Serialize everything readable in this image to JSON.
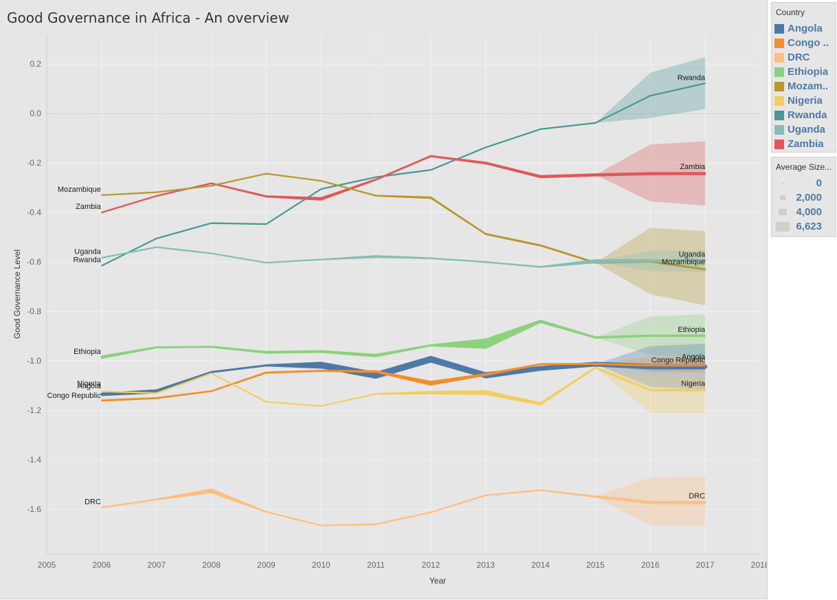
{
  "title": "Good Governance in Africa - An overview",
  "legend": {
    "title": "Country",
    "items": [
      {
        "label": "Angola",
        "color": "#4e79a7"
      },
      {
        "label": "Congo ..",
        "color": "#f28e2b"
      },
      {
        "label": "DRC",
        "color": "#ffbe7d"
      },
      {
        "label": "Ethiopia",
        "color": "#8cd17d"
      },
      {
        "label": "Mozam..",
        "color": "#b6992d"
      },
      {
        "label": "Nigeria",
        "color": "#f1ce63"
      },
      {
        "label": "Rwanda",
        "color": "#499894"
      },
      {
        "label": "Uganda",
        "color": "#86bcb6"
      },
      {
        "label": "Zambia",
        "color": "#e15759"
      }
    ]
  },
  "size_legend": {
    "title": "Average Size...",
    "items": [
      {
        "label": "0",
        "value": 0
      },
      {
        "label": "2,000",
        "value": 2000
      },
      {
        "label": "4,000",
        "value": 4000
      },
      {
        "label": "6,623",
        "value": 6623
      }
    ]
  },
  "chart_data": {
    "type": "line",
    "title": "Good Governance in Africa - An overview",
    "xlabel": "Year",
    "ylabel": "Good Governance Level",
    "xlim": [
      2005,
      2018
    ],
    "ylim": [
      -1.78,
      0.32
    ],
    "xticks": [
      "2005",
      "2006",
      "2007",
      "2008",
      "2009",
      "2010",
      "2011",
      "2012",
      "2013",
      "2014",
      "2015",
      "2016",
      "2017",
      "2018"
    ],
    "yticks": [
      "0.2",
      "0.0",
      "-0.2",
      "-0.4",
      "-0.6",
      "-0.8",
      "-1.0",
      "-1.2",
      "-1.4",
      "-1.6"
    ],
    "grid": true,
    "legend_position": "right",
    "band_start_year": 2015,
    "series": [
      {
        "name": "Rwanda",
        "color": "#499894",
        "label": "Rwanda",
        "x": [
          2006,
          2007,
          2008,
          2009,
          2010,
          2011,
          2012,
          2013,
          2014,
          2015,
          2016,
          2017
        ],
        "values": [
          -0.615,
          -0.505,
          -0.443,
          -0.447,
          -0.305,
          -0.257,
          -0.228,
          -0.137,
          -0.063,
          -0.038,
          0.072,
          0.122
        ],
        "widths": [
          1.3,
          1.3,
          1.3,
          1.3,
          1.3,
          1.3,
          1.3,
          1.3,
          1.3,
          1.3,
          1.3,
          1.3
        ],
        "band_upper": [
          -0.038,
          0.165,
          0.228
        ],
        "band_lower": [
          -0.038,
          -0.018,
          0.018
        ]
      },
      {
        "name": "Zambia",
        "color": "#e15759",
        "label": "Zambia",
        "x": [
          2006,
          2007,
          2008,
          2009,
          2010,
          2011,
          2012,
          2013,
          2014,
          2015,
          2016,
          2017
        ],
        "values": [
          -0.4,
          -0.333,
          -0.282,
          -0.335,
          -0.345,
          -0.267,
          -0.172,
          -0.2,
          -0.255,
          -0.248,
          -0.243,
          -0.243
        ],
        "widths": [
          1.5,
          1.5,
          1.5,
          2.2,
          4,
          2,
          2,
          3,
          3.5,
          3.5,
          3.5,
          3.5
        ],
        "band_upper": [
          -0.248,
          -0.125,
          -0.112
        ],
        "band_lower": [
          -0.248,
          -0.355,
          -0.372
        ]
      },
      {
        "name": "Mozambique",
        "color": "#b6992d",
        "label": "Mozambique",
        "x": [
          2006,
          2007,
          2008,
          2009,
          2010,
          2011,
          2012,
          2013,
          2014,
          2015,
          2016,
          2017
        ],
        "values": [
          -0.33,
          -0.318,
          -0.292,
          -0.243,
          -0.272,
          -0.332,
          -0.34,
          -0.487,
          -0.533,
          -0.603,
          -0.598,
          -0.63
        ],
        "widths": [
          1.3,
          1.3,
          1.3,
          1.3,
          1.3,
          1.5,
          2.5,
          2,
          2,
          2,
          2,
          2
        ],
        "band_upper": [
          -0.603,
          -0.462,
          -0.475
        ],
        "band_lower": [
          -0.603,
          -0.73,
          -0.775
        ]
      },
      {
        "name": "Uganda",
        "color": "#86bcb6",
        "label": "Uganda",
        "x": [
          2006,
          2007,
          2008,
          2009,
          2010,
          2011,
          2012,
          2013,
          2014,
          2015,
          2016,
          2017
        ],
        "values": [
          -0.583,
          -0.54,
          -0.565,
          -0.603,
          -0.59,
          -0.578,
          -0.585,
          -0.6,
          -0.62,
          -0.597,
          -0.595,
          -0.593
        ],
        "widths": [
          1.3,
          1.3,
          1.3,
          1.3,
          1.3,
          3,
          1.5,
          1.5,
          1.5,
          5,
          3,
          3
        ],
        "band_upper": [
          -0.597,
          -0.555,
          -0.553
        ],
        "band_lower": [
          -0.597,
          -0.638,
          -0.64
        ]
      },
      {
        "name": "Ethiopia",
        "color": "#8cd17d",
        "label": "Ethiopia",
        "x": [
          2006,
          2007,
          2008,
          2009,
          2010,
          2011,
          2012,
          2013,
          2014,
          2015,
          2016,
          2017
        ],
        "values": [
          -0.985,
          -0.945,
          -0.943,
          -0.965,
          -0.962,
          -0.978,
          -0.937,
          -0.93,
          -0.84,
          -0.905,
          -0.898,
          -0.898
        ],
        "widths": [
          4,
          2,
          2,
          3,
          3,
          4,
          2,
          14,
          4,
          2.5,
          2.5,
          2.5
        ],
        "band_upper": [
          -0.905,
          -0.82,
          -0.812
        ],
        "band_lower": [
          -0.905,
          -0.975,
          -0.99
        ]
      },
      {
        "name": "Angola",
        "color": "#4e79a7",
        "label": "Angola",
        "x": [
          2006,
          2007,
          2008,
          2009,
          2010,
          2011,
          2012,
          2013,
          2014,
          2015,
          2016,
          2017
        ],
        "values": [
          -1.135,
          -1.123,
          -1.045,
          -1.018,
          -1.017,
          -1.058,
          -0.993,
          -1.058,
          -1.03,
          -1.013,
          -1.023,
          -1.023
        ],
        "widths": [
          4,
          5,
          2,
          2,
          9,
          9,
          9,
          8,
          6,
          6,
          7,
          7
        ],
        "band_upper": [
          -1.013,
          -0.94,
          -0.93
        ],
        "band_lower": [
          -1.013,
          -1.105,
          -1.115
        ]
      },
      {
        "name": "Congo Republic",
        "color": "#f28e2b",
        "label": "Congo Republic",
        "x": [
          2006,
          2007,
          2008,
          2009,
          2010,
          2011,
          2012,
          2013,
          2014,
          2015,
          2016,
          2017
        ],
        "values": [
          -1.16,
          -1.15,
          -1.122,
          -1.047,
          -1.04,
          -1.043,
          -1.09,
          -1.055,
          -1.013,
          -1.012,
          -1.018,
          -1.018
        ],
        "widths": [
          2,
          2,
          1.5,
          2,
          2,
          3,
          6,
          3,
          2,
          2,
          2,
          2
        ],
        "band_upper": [
          -1.012,
          -0.985,
          -0.983
        ],
        "band_lower": [
          -1.012,
          -1.045,
          -1.048
        ]
      },
      {
        "name": "Nigeria",
        "color": "#f1ce63",
        "label": "Nigeria",
        "x": [
          2006,
          2007,
          2008,
          2009,
          2010,
          2011,
          2012,
          2013,
          2014,
          2015,
          2016,
          2017
        ],
        "values": [
          -1.123,
          -1.13,
          -1.05,
          -1.165,
          -1.182,
          -1.133,
          -1.128,
          -1.128,
          -1.173,
          -1.027,
          -1.118,
          -1.118
        ],
        "widths": [
          1.3,
          1.3,
          1.3,
          1.3,
          1.3,
          1.3,
          4,
          6,
          4,
          2,
          2.5,
          2.5
        ],
        "band_upper": [
          -1.027,
          -1.06,
          -1.06
        ],
        "band_lower": [
          -1.027,
          -1.21,
          -1.212
        ]
      },
      {
        "name": "DRC",
        "color": "#ffbe7d",
        "label": "DRC",
        "x": [
          2006,
          2007,
          2008,
          2009,
          2010,
          2011,
          2012,
          2013,
          2014,
          2015,
          2016,
          2017
        ],
        "values": [
          -1.592,
          -1.56,
          -1.525,
          -1.61,
          -1.665,
          -1.66,
          -1.612,
          -1.543,
          -1.522,
          -1.548,
          -1.572,
          -1.572
        ],
        "widths": [
          1.3,
          1.5,
          6,
          1.3,
          1.3,
          1.3,
          1.3,
          1.3,
          1.3,
          2,
          3.5,
          3.5
        ],
        "band_upper": [
          -1.548,
          -1.47,
          -1.468
        ],
        "band_lower": [
          -1.548,
          -1.665,
          -1.668
        ]
      }
    ],
    "start_labels": [
      {
        "text": "Mozambique",
        "value": -0.305
      },
      {
        "text": "Zambia",
        "value": -0.375
      },
      {
        "text": "Uganda",
        "value": -0.557
      },
      {
        "text": "Rwanda",
        "value": -0.59
      },
      {
        "text": "Ethiopia",
        "value": -0.96
      },
      {
        "text": "Nigeria",
        "value": -1.09
      },
      {
        "text": "Angola",
        "value": -1.1
      },
      {
        "text": "Congo Republic",
        "value": -1.138
      },
      {
        "text": "DRC",
        "value": -1.568
      }
    ],
    "end_labels": [
      {
        "text": "Rwanda",
        "value": 0.147
      },
      {
        "text": "Zambia",
        "value": -0.213
      },
      {
        "text": "Uganda",
        "value": -0.567
      },
      {
        "text": "Mozambique",
        "value": -0.598
      },
      {
        "text": "Ethiopia",
        "value": -0.872
      },
      {
        "text": "Angola",
        "value": -0.982
      },
      {
        "text": "Congo Republic",
        "value": -0.995
      },
      {
        "text": "Nigeria",
        "value": -1.09
      },
      {
        "text": "DRC",
        "value": -1.544
      }
    ]
  }
}
